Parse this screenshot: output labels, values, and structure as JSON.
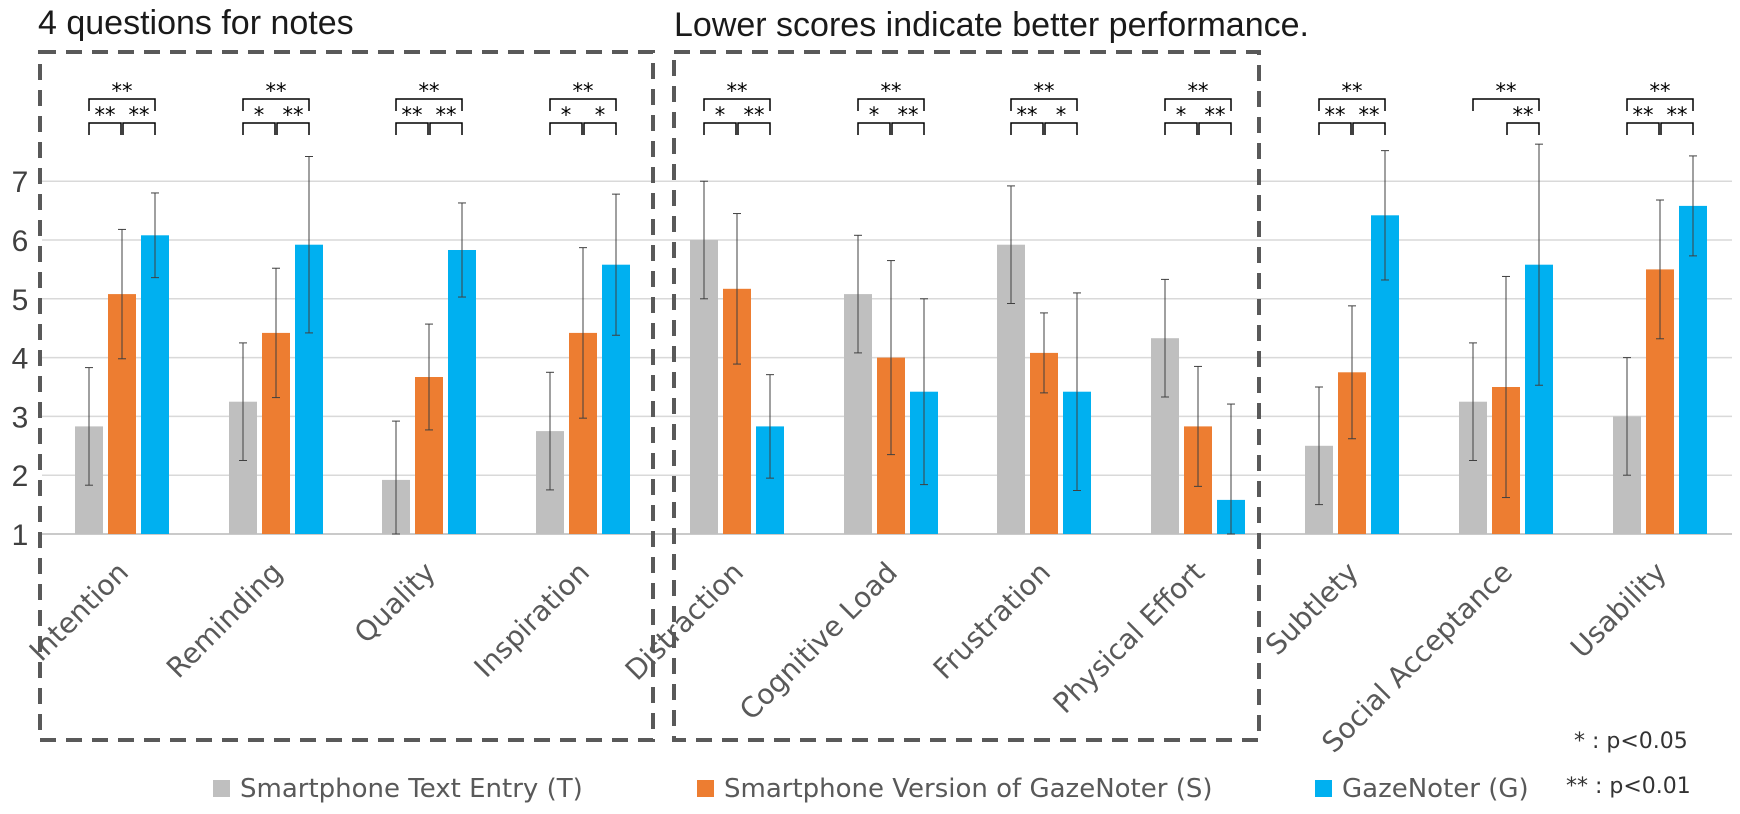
{
  "titles": {
    "left": "4 questions for notes",
    "middle": "Lower scores indicate better performance."
  },
  "notes": {
    "sig1": "* : p<0.05",
    "sig2": "** : p<0.01"
  },
  "colors": {
    "T": "#bfbfbf",
    "S": "#ed7d31",
    "G": "#00b0f0",
    "grid": "#d9d9d9",
    "box": "#595959"
  },
  "chart_data": {
    "type": "bar",
    "ylim": [
      1,
      8
    ],
    "yticks": [
      "1",
      "2",
      "3",
      "4",
      "5",
      "6",
      "7"
    ],
    "grid": true,
    "legend_position": "bottom",
    "categories": [
      "Intention",
      "Reminding",
      "Quality",
      "Inspiration",
      "Distraction",
      "Cognitive Load",
      "Frustration",
      "Physical Effort",
      "Subtlety",
      "Social Acceptance",
      "Usability"
    ],
    "series": [
      {
        "name": "Smartphone Text Entry (T)",
        "key": "T",
        "values": [
          2.83,
          3.25,
          1.92,
          2.75,
          6.0,
          5.08,
          5.92,
          4.33,
          2.5,
          3.25,
          3.0
        ],
        "errors": [
          1.0,
          1.0,
          1.0,
          1.0,
          1.0,
          1.0,
          1.0,
          1.0,
          1.0,
          1.0,
          1.0
        ]
      },
      {
        "name": "Smartphone Version of GazeNoter  (S)",
        "key": "S",
        "values": [
          5.08,
          4.42,
          3.67,
          4.42,
          5.17,
          4.0,
          4.08,
          2.83,
          3.75,
          3.5,
          5.5
        ],
        "errors": [
          1.1,
          1.1,
          0.9,
          1.45,
          1.28,
          1.65,
          0.68,
          1.02,
          1.13,
          1.88,
          1.18
        ]
      },
      {
        "name": "GazeNoter (G)",
        "key": "G",
        "values": [
          6.08,
          5.92,
          5.83,
          5.58,
          2.83,
          3.42,
          3.42,
          1.58,
          6.42,
          5.58,
          6.58
        ],
        "errors": [
          0.72,
          1.5,
          0.8,
          1.2,
          0.88,
          1.58,
          1.68,
          1.63,
          1.1,
          2.05,
          0.85
        ]
      }
    ],
    "significance": [
      {
        "top": "**",
        "left": "**",
        "right": "**"
      },
      {
        "top": "**",
        "left": "*",
        "right": "**"
      },
      {
        "top": "**",
        "left": "**",
        "right": "**"
      },
      {
        "top": "**",
        "left": "*",
        "right": "*"
      },
      {
        "top": "**",
        "left": "*",
        "right": "**"
      },
      {
        "top": "**",
        "left": "*",
        "right": "**"
      },
      {
        "top": "**",
        "left": "**",
        "right": "*"
      },
      {
        "top": "**",
        "left": "*",
        "right": "**"
      },
      {
        "top": "**",
        "left": "**",
        "right": "**"
      },
      {
        "top": "**",
        "left": "",
        "right": "**"
      },
      {
        "top": "**",
        "left": "**",
        "right": "**"
      }
    ],
    "groups": [
      {
        "label": "4 questions for notes",
        "categories": [
          0,
          1,
          2,
          3
        ]
      },
      {
        "label": "Lower scores indicate better performance.",
        "categories": [
          4,
          5,
          6,
          7
        ]
      }
    ]
  }
}
